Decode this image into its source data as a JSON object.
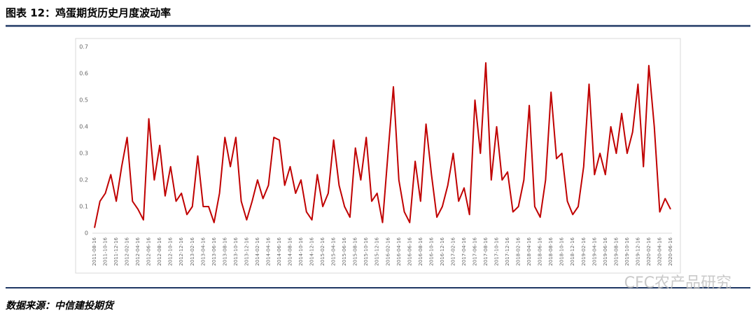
{
  "header": {
    "title": "图表 12：鸡蛋期货历史月度波动率"
  },
  "chart_data": {
    "type": "line",
    "categories": [
      "2011-08-16",
      null,
      "2011-10-16",
      null,
      "2011-12-16",
      null,
      "2012-02-16",
      null,
      "2012-04-16",
      null,
      "2012-06-16",
      null,
      "2012-08-16",
      null,
      "2012-10-16",
      null,
      "2012-12-16",
      null,
      "2013-02-16",
      null,
      "2013-04-16",
      null,
      "2013-06-16",
      null,
      "2013-08-16",
      null,
      "2013-10-16",
      null,
      "2013-12-16",
      null,
      "2014-02-16",
      null,
      "2014-04-16",
      null,
      "2014-06-16",
      null,
      "2014-08-16",
      null,
      "2014-10-16",
      null,
      "2014-12-16",
      null,
      "2015-02-16",
      null,
      "2015-04-16",
      null,
      "2015-06-16",
      null,
      "2015-08-16",
      null,
      "2015-10-16",
      null,
      "2015-12-16",
      null,
      "2016-02-16",
      null,
      "2016-04-16",
      null,
      "2016-06-16",
      null,
      "2016-08-16",
      null,
      "2016-10-16",
      null,
      "2016-12-16",
      null,
      "2017-02-16",
      null,
      "2017-04-16",
      null,
      "2017-06-16",
      null,
      "2017-08-16",
      null,
      "2017-10-16",
      null,
      "2017-12-16",
      null,
      "2018-02-16",
      null,
      "2018-04-16",
      null,
      "2018-06-16",
      null,
      "2018-08-16",
      null,
      "2018-10-16",
      null,
      "2018-12-16",
      null,
      "2019-02-16",
      null,
      "2019-04-16",
      null,
      "2019-06-16",
      null,
      "2019-08-16",
      null,
      "2019-10-16",
      null,
      "2019-12-16",
      null,
      "2020-02-16",
      null,
      "2020-04-16",
      null,
      "2020-06-16"
    ],
    "series": [
      {
        "color": "#c00000",
        "values": [
          0.02,
          0.12,
          0.15,
          0.22,
          0.12,
          0.25,
          0.36,
          0.12,
          0.09,
          0.05,
          0.43,
          0.2,
          0.33,
          0.14,
          0.25,
          0.12,
          0.15,
          0.07,
          0.1,
          0.29,
          0.1,
          0.1,
          0.04,
          0.15,
          0.36,
          0.25,
          0.36,
          0.12,
          0.05,
          0.12,
          0.2,
          0.13,
          0.18,
          0.36,
          0.35,
          0.18,
          0.25,
          0.15,
          0.2,
          0.08,
          0.05,
          0.22,
          0.1,
          0.15,
          0.35,
          0.18,
          0.1,
          0.06,
          0.32,
          0.2,
          0.36,
          0.12,
          0.15,
          0.04,
          0.3,
          0.55,
          0.2,
          0.08,
          0.04,
          0.27,
          0.12,
          0.41,
          0.22,
          0.06,
          0.1,
          0.18,
          0.3,
          0.12,
          0.17,
          0.07,
          0.5,
          0.3,
          0.64,
          0.2,
          0.4,
          0.2,
          0.23,
          0.08,
          0.1,
          0.2,
          0.48,
          0.1,
          0.06,
          0.2,
          0.53,
          0.28,
          0.3,
          0.12,
          0.07,
          0.1,
          0.25,
          0.56,
          0.22,
          0.3,
          0.22,
          0.4,
          0.3,
          0.45,
          0.3,
          0.38,
          0.56,
          0.25,
          0.63,
          0.4,
          0.08,
          0.13,
          0.09
        ]
      }
    ],
    "ylim": [
      0,
      0.7
    ],
    "yticks": [
      0,
      0.1,
      0.2,
      0.3,
      0.4,
      0.5,
      0.6,
      0.7
    ]
  },
  "footer": {
    "source": "数据来源：中信建投期货",
    "watermark": "CFC农产品研究"
  }
}
